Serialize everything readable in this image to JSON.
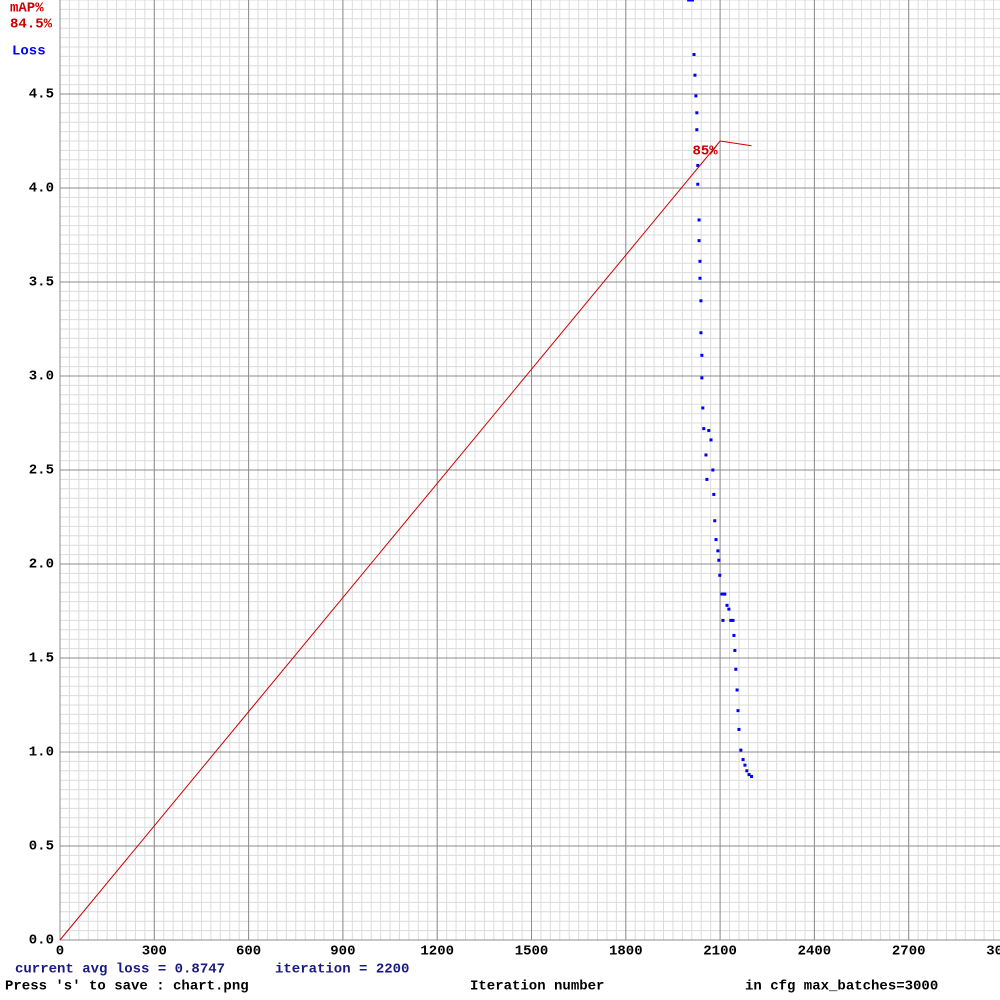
{
  "chart_data": {
    "type": "scatter",
    "xlabel": "Iteration number",
    "annotations": [
      "current avg loss = 0.8747",
      "iteration = 2200",
      "Press 's' to save : chart.png",
      "in cfg max_batches=3000"
    ],
    "xlim": [
      0,
      3000
    ],
    "xticks": [
      0,
      300,
      600,
      900,
      1200,
      1500,
      1800,
      2100,
      2400,
      2700,
      3000
    ],
    "ylim": [
      0,
      5
    ],
    "yticks": [
      {
        "value": 0,
        "label": "0.0"
      },
      0.5,
      {
        "value": 1,
        "label": "1.0"
      },
      1.5,
      {
        "value": 2,
        "label": "2.0"
      },
      2.5,
      {
        "value": 3,
        "label": "3.0"
      },
      3.5,
      {
        "value": 4,
        "label": "4.0"
      },
      4.5
    ],
    "y2lim": [
      0,
      100
    ],
    "grid": true,
    "legend": "top-left",
    "series": [
      {
        "name": "Loss",
        "color": "#0000ff",
        "x": [
          2000,
          2004,
          2008,
          2012,
          2017,
          2020,
          2023,
          2026,
          2026,
          2029,
          2029,
          2033,
          2033,
          2036,
          2036,
          2039,
          2039,
          2042,
          2042,
          2045,
          2048,
          2055,
          2058,
          2064,
          2071,
          2077,
          2080,
          2083,
          2087,
          2093,
          2096,
          2099,
          2106,
          2109,
          2115,
          2122,
          2128,
          2134,
          2141,
          2144,
          2147,
          2150,
          2154,
          2157,
          2160,
          2166,
          2173,
          2179,
          2185,
          2192,
          2200
        ],
        "values": [
          5.0,
          5.0,
          5.0,
          5.0,
          4.71,
          4.6,
          4.49,
          4.4,
          4.31,
          4.12,
          4.02,
          3.83,
          3.72,
          3.61,
          3.52,
          3.4,
          3.23,
          3.11,
          2.99,
          2.83,
          2.72,
          2.58,
          2.45,
          2.71,
          2.66,
          2.5,
          2.37,
          2.23,
          2.13,
          2.07,
          2.02,
          1.94,
          1.84,
          1.7,
          1.84,
          1.78,
          1.76,
          1.7,
          1.7,
          1.62,
          1.54,
          1.44,
          1.33,
          1.22,
          1.12,
          1.01,
          0.96,
          0.93,
          0.9,
          0.88,
          0.87
        ]
      },
      {
        "name": "mAP%",
        "color": "#cc0000",
        "axis": "y2",
        "x": [
          0,
          2100,
          2200
        ],
        "values": [
          0,
          85,
          84.5
        ],
        "value_labels": [
          null,
          "85%",
          "84.5%"
        ]
      }
    ]
  }
}
